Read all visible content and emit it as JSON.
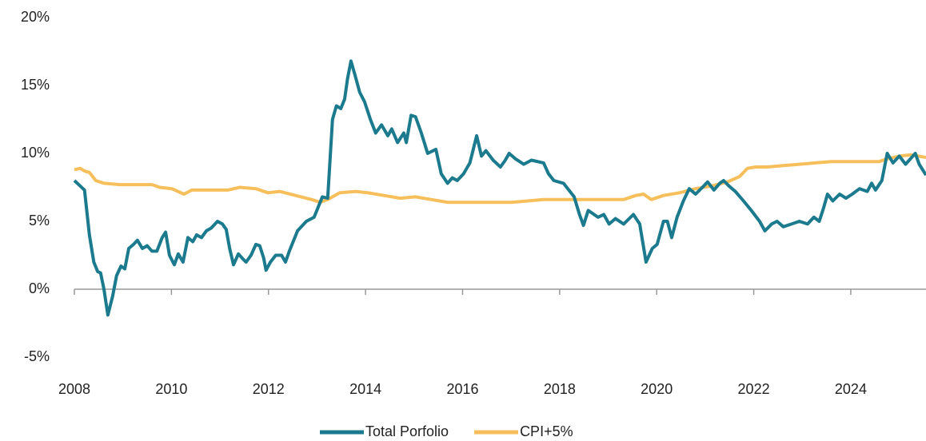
{
  "chart_data": {
    "type": "line",
    "xlim": [
      2008,
      2025.55
    ],
    "xticks": [
      2008,
      2010,
      2012,
      2014,
      2016,
      2018,
      2020,
      2022,
      2024
    ],
    "ylim": [
      -5,
      20
    ],
    "yticks": [
      {
        "value": -5,
        "label": "-5%"
      },
      {
        "value": 0,
        "label": "0%"
      },
      {
        "value": 5,
        "label": "5%"
      },
      {
        "value": 10,
        "label": "10%"
      },
      {
        "value": 15,
        "label": "15%"
      },
      {
        "value": 20,
        "label": "20%"
      }
    ],
    "legend": "bottom",
    "series": [
      {
        "name": "Total Porfolio",
        "color": "#1b7a8d",
        "x": [
          2008.0,
          2008.12,
          2008.21,
          2008.31,
          2008.4,
          2008.48,
          2008.54,
          2008.61,
          2008.69,
          2008.79,
          2008.87,
          2008.96,
          2009.04,
          2009.12,
          2009.22,
          2009.3,
          2009.4,
          2009.5,
          2009.6,
          2009.7,
          2009.81,
          2009.88,
          2009.96,
          2010.06,
          2010.14,
          2010.24,
          2010.34,
          2010.44,
          2010.52,
          2010.62,
          2010.72,
          2010.82,
          2010.95,
          2011.05,
          2011.13,
          2011.2,
          2011.28,
          2011.38,
          2011.48,
          2011.54,
          2011.64,
          2011.74,
          2011.82,
          2011.9,
          2011.95,
          2012.04,
          2012.15,
          2012.27,
          2012.35,
          2012.43,
          2012.6,
          2012.78,
          2012.94,
          2013.11,
          2013.22,
          2013.32,
          2013.4,
          2013.49,
          2013.57,
          2013.63,
          2013.7,
          2013.78,
          2013.88,
          2013.98,
          2014.1,
          2014.21,
          2014.33,
          2014.46,
          2014.54,
          2014.66,
          2014.79,
          2014.84,
          2014.94,
          2015.03,
          2015.15,
          2015.28,
          2015.45,
          2015.56,
          2015.69,
          2015.79,
          2015.89,
          2016.02,
          2016.15,
          2016.29,
          2016.39,
          2016.48,
          2016.63,
          2016.78,
          2016.88,
          2016.96,
          2017.09,
          2017.26,
          2017.42,
          2017.67,
          2017.77,
          2017.88,
          2018.08,
          2018.3,
          2018.41,
          2018.49,
          2018.59,
          2018.79,
          2018.91,
          2019.02,
          2019.15,
          2019.32,
          2019.52,
          2019.65,
          2019.78,
          2019.91,
          2020.01,
          2020.14,
          2020.22,
          2020.31,
          2020.42,
          2020.55,
          2020.67,
          2020.8,
          2020.97,
          2021.05,
          2021.18,
          2021.3,
          2021.38,
          2021.49,
          2021.62,
          2021.79,
          2021.95,
          2022.12,
          2022.23,
          2022.37,
          2022.48,
          2022.61,
          2022.78,
          2022.94,
          2023.11,
          2023.24,
          2023.35,
          2023.44,
          2023.52,
          2023.63,
          2023.77,
          2023.9,
          2024.03,
          2024.18,
          2024.34,
          2024.43,
          2024.51,
          2024.64,
          2024.75,
          2024.87,
          2025.0,
          2025.13,
          2025.33,
          2025.41,
          2025.55
        ],
        "values": [
          8.0,
          7.6,
          7.3,
          4.0,
          2.0,
          1.3,
          1.2,
          0.0,
          -1.9,
          -0.5,
          1.0,
          1.7,
          1.5,
          3.0,
          3.3,
          3.6,
          3.0,
          3.2,
          2.8,
          2.8,
          3.8,
          4.2,
          2.5,
          1.8,
          2.6,
          2.0,
          3.8,
          3.5,
          4.0,
          3.8,
          4.3,
          4.5,
          5.0,
          4.8,
          4.4,
          3.0,
          1.8,
          2.6,
          2.2,
          2.0,
          2.5,
          3.3,
          3.2,
          2.3,
          1.4,
          2.0,
          2.5,
          2.5,
          2.0,
          2.8,
          4.3,
          5.0,
          5.3,
          6.8,
          6.7,
          12.5,
          13.5,
          13.3,
          14.0,
          15.5,
          16.8,
          15.8,
          14.5,
          13.8,
          12.5,
          11.5,
          12.1,
          11.3,
          11.8,
          10.8,
          11.5,
          10.8,
          12.8,
          12.7,
          11.5,
          10.0,
          10.3,
          8.5,
          7.8,
          8.2,
          8.0,
          8.5,
          9.3,
          11.3,
          9.8,
          10.2,
          9.5,
          9.0,
          9.5,
          10.0,
          9.6,
          9.2,
          9.5,
          9.3,
          8.5,
          8.0,
          7.8,
          6.8,
          5.5,
          4.7,
          5.8,
          5.3,
          5.5,
          4.8,
          5.2,
          4.8,
          5.5,
          4.8,
          2.0,
          3.0,
          3.3,
          5.0,
          5.0,
          3.8,
          5.3,
          6.5,
          7.4,
          7.0,
          7.6,
          7.9,
          7.3,
          7.8,
          8.0,
          7.6,
          7.2,
          6.5,
          5.8,
          5.0,
          4.3,
          4.8,
          5.0,
          4.6,
          4.8,
          5.0,
          4.8,
          5.3,
          5.0,
          6.0,
          7.0,
          6.5,
          7.0,
          6.7,
          7.0,
          7.4,
          7.2,
          7.8,
          7.3,
          8.0,
          10.0,
          9.3,
          9.8,
          9.2,
          10.0,
          9.2,
          8.4
        ]
      },
      {
        "name": "CPI+5%",
        "color": "#f6bf5b",
        "x": [
          2008.0,
          2008.12,
          2008.21,
          2008.31,
          2008.44,
          2008.61,
          2008.94,
          2009.27,
          2009.6,
          2009.76,
          2010.01,
          2010.26,
          2010.42,
          2010.75,
          2011.16,
          2011.41,
          2011.74,
          2011.99,
          2012.23,
          2012.56,
          2012.89,
          2013.06,
          2013.22,
          2013.47,
          2013.8,
          2014.05,
          2014.38,
          2014.71,
          2015.03,
          2015.36,
          2015.69,
          2016.02,
          2016.35,
          2016.68,
          2017.01,
          2017.34,
          2017.67,
          2018.01,
          2018.34,
          2018.67,
          2018.99,
          2019.32,
          2019.57,
          2019.73,
          2019.89,
          2020.14,
          2020.47,
          2020.8,
          2021.13,
          2021.46,
          2021.71,
          2021.87,
          2022.04,
          2022.28,
          2022.61,
          2022.94,
          2023.27,
          2023.6,
          2023.93,
          2024.26,
          2024.59,
          2024.75,
          2025.0,
          2025.25,
          2025.55
        ],
        "values": [
          8.8,
          8.9,
          8.7,
          8.6,
          8.0,
          7.8,
          7.7,
          7.7,
          7.7,
          7.5,
          7.4,
          7.0,
          7.3,
          7.3,
          7.3,
          7.5,
          7.4,
          7.1,
          7.2,
          6.9,
          6.6,
          6.4,
          6.6,
          7.1,
          7.2,
          7.1,
          6.9,
          6.7,
          6.8,
          6.6,
          6.4,
          6.4,
          6.4,
          6.4,
          6.4,
          6.5,
          6.6,
          6.6,
          6.6,
          6.6,
          6.6,
          6.6,
          6.9,
          7.0,
          6.6,
          6.9,
          7.1,
          7.4,
          7.6,
          7.9,
          8.3,
          8.9,
          9.0,
          9.0,
          9.1,
          9.2,
          9.3,
          9.4,
          9.4,
          9.4,
          9.4,
          9.6,
          9.8,
          9.9,
          9.7
        ]
      }
    ]
  }
}
